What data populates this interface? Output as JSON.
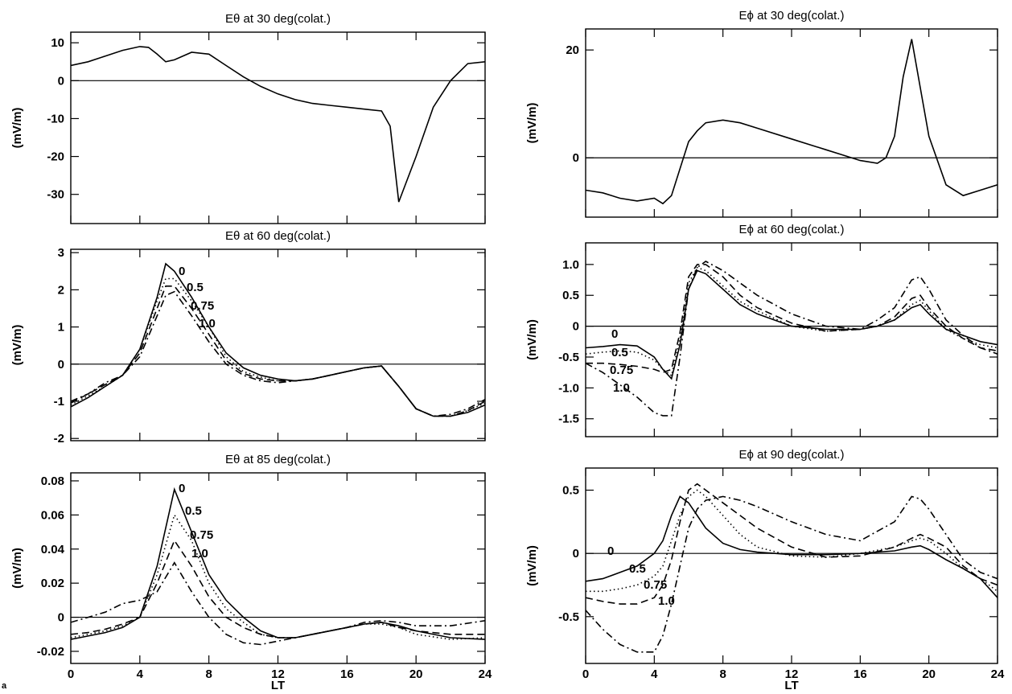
{
  "figure_label": "a",
  "chart_data": [
    {
      "type": "line",
      "title": "Eθ at 30 deg(colat.)",
      "ylabel": "(mV/m)",
      "x": [
        0,
        1,
        2,
        3,
        4,
        4.5,
        5,
        5.5,
        6,
        7,
        8,
        9,
        10,
        11,
        12,
        13,
        14,
        15,
        16,
        17,
        18,
        18.5,
        19,
        20,
        21,
        22,
        23,
        24
      ],
      "series": [
        {
          "name": null,
          "color": "#000000",
          "linestyle": "solid",
          "values": [
            4,
            5,
            6.5,
            8,
            9,
            8.8,
            7,
            5,
            5.5,
            7.5,
            7,
            4,
            1,
            -1.5,
            -3.5,
            -5,
            -6,
            -6.5,
            -7,
            -7.5,
            -8,
            -12,
            -32,
            -20,
            -7,
            0,
            4.5,
            5
          ]
        }
      ],
      "xlim": [
        0,
        24
      ],
      "xticks": [
        0,
        4,
        8,
        12,
        16,
        20,
        24
      ],
      "xtick_labels": false,
      "ylim": [
        -37.7,
        12.8
      ],
      "yticks": [
        10,
        0,
        -10,
        -20,
        -30
      ],
      "reference_line": 0
    },
    {
      "type": "line",
      "title": "Eθ at 60 deg(colat.)",
      "ylabel": "(mV/m)",
      "x": [
        0,
        1,
        2,
        3,
        4,
        5,
        5.5,
        6,
        7,
        8,
        9,
        10,
        11,
        12,
        13,
        14,
        15,
        16,
        17,
        18,
        19,
        20,
        21,
        22,
        23,
        24
      ],
      "series": [
        {
          "name": "0",
          "color": "#000000",
          "linestyle": "solid",
          "values": [
            -1.15,
            -0.9,
            -0.6,
            -0.3,
            0.4,
            1.8,
            2.7,
            2.5,
            1.8,
            1.0,
            0.3,
            -0.1,
            -0.3,
            -0.4,
            -0.45,
            -0.4,
            -0.3,
            -0.2,
            -0.1,
            -0.05,
            -0.6,
            -1.2,
            -1.4,
            -1.4,
            -1.3,
            -1.1
          ]
        },
        {
          "name": "0.5",
          "color": "#000000",
          "linestyle": "dotted",
          "values": [
            -1.1,
            -0.85,
            -0.6,
            -0.3,
            0.4,
            1.7,
            2.3,
            2.3,
            1.7,
            1.0,
            0.2,
            -0.2,
            -0.35,
            -0.45,
            -0.45,
            -0.4,
            -0.3,
            -0.2,
            -0.1,
            -0.05,
            -0.6,
            -1.2,
            -1.4,
            -1.4,
            -1.25,
            -1.05
          ]
        },
        {
          "name": "0.75",
          "color": "#000000",
          "linestyle": "dashed",
          "values": [
            -1.05,
            -0.8,
            -0.55,
            -0.3,
            0.3,
            1.5,
            2.1,
            2.1,
            1.5,
            0.8,
            0.1,
            -0.25,
            -0.4,
            -0.45,
            -0.45,
            -0.4,
            -0.3,
            -0.2,
            -0.1,
            -0.05,
            -0.6,
            -1.2,
            -1.4,
            -1.4,
            -1.25,
            -1.0
          ]
        },
        {
          "name": "1.0",
          "color": "#000000",
          "linestyle": "dashdot",
          "values": [
            -1.0,
            -0.8,
            -0.5,
            -0.3,
            0.2,
            1.3,
            1.85,
            1.95,
            1.3,
            0.6,
            0.0,
            -0.3,
            -0.45,
            -0.5,
            -0.45,
            -0.4,
            -0.3,
            -0.2,
            -0.1,
            -0.05,
            -0.6,
            -1.2,
            -1.4,
            -1.35,
            -1.2,
            -0.95
          ]
        }
      ],
      "xlim": [
        0,
        24
      ],
      "xticks": [
        0,
        4,
        8,
        12,
        16,
        20,
        24
      ],
      "xtick_labels": false,
      "ylim": [
        -2.06,
        3.09
      ],
      "yticks": [
        3,
        2,
        1,
        0,
        -1,
        -2
      ],
      "reference_line": 0
    },
    {
      "type": "line",
      "title": "Eθ at 85 deg(colat.)",
      "ylabel": "(mV/m)",
      "xlabel": "LT",
      "x": [
        0,
        1,
        2,
        3,
        4,
        5,
        6,
        7,
        8,
        9,
        10,
        11,
        12,
        13,
        14,
        16,
        17,
        18,
        19,
        20,
        22,
        24
      ],
      "series": [
        {
          "name": "0",
          "color": "#000000",
          "linestyle": "solid",
          "values": [
            -0.013,
            -0.011,
            -0.009,
            -0.006,
            0.0,
            0.03,
            0.075,
            0.05,
            0.025,
            0.01,
            0.0,
            -0.008,
            -0.012,
            -0.012,
            -0.01,
            -0.006,
            -0.004,
            -0.003,
            -0.005,
            -0.008,
            -0.012,
            -0.013
          ]
        },
        {
          "name": "0.5",
          "color": "#000000",
          "linestyle": "dotted",
          "values": [
            -0.012,
            -0.01,
            -0.008,
            -0.005,
            0.0,
            0.025,
            0.06,
            0.045,
            0.02,
            0.005,
            -0.003,
            -0.01,
            -0.012,
            -0.012,
            -0.01,
            -0.006,
            -0.004,
            -0.004,
            -0.006,
            -0.01,
            -0.013,
            -0.012
          ]
        },
        {
          "name": "0.75",
          "color": "#000000",
          "linestyle": "dashed",
          "values": [
            -0.01,
            -0.009,
            -0.007,
            -0.004,
            0.0,
            0.02,
            0.045,
            0.03,
            0.012,
            0.0,
            -0.006,
            -0.01,
            -0.012,
            -0.012,
            -0.01,
            -0.006,
            -0.004,
            -0.003,
            -0.006,
            -0.008,
            -0.01,
            -0.01
          ]
        },
        {
          "name": "1.0",
          "color": "#000000",
          "linestyle": "dashdot",
          "values": [
            -0.003,
            0.0,
            0.003,
            0.008,
            0.01,
            0.015,
            0.032,
            0.015,
            0.0,
            -0.01,
            -0.015,
            -0.016,
            -0.014,
            -0.012,
            -0.01,
            -0.006,
            -0.003,
            -0.002,
            -0.003,
            -0.005,
            -0.005,
            -0.002
          ]
        }
      ],
      "xlim": [
        0,
        24
      ],
      "xticks": [
        0,
        4,
        8,
        12,
        16,
        20,
        24
      ],
      "xtick_labels": true,
      "ylim": [
        -0.0271,
        0.0847
      ],
      "yticks": [
        0.08,
        0.06,
        0.04,
        0.02,
        0,
        -0.02
      ],
      "reference_line": 0
    },
    {
      "type": "line",
      "title": "Eϕ at 30 deg(colat.)",
      "ylabel": "(mV/m)",
      "x": [
        0,
        1,
        2,
        3,
        4,
        4.5,
        5,
        5.5,
        6,
        6.5,
        7,
        8,
        9,
        10,
        12,
        14,
        15,
        16,
        17,
        17.5,
        18,
        18.5,
        19,
        19.5,
        20,
        21,
        22,
        23,
        24
      ],
      "series": [
        {
          "name": null,
          "color": "#000000",
          "linestyle": "solid",
          "values": [
            -6,
            -6.5,
            -7.5,
            -8,
            -7.5,
            -8.5,
            -7,
            -2,
            3,
            5,
            6.5,
            7,
            6.5,
            5.5,
            3.5,
            1.5,
            0.5,
            -0.5,
            -1,
            0,
            4,
            15,
            22,
            13,
            4,
            -5,
            -7,
            -6,
            -5
          ]
        }
      ],
      "xlim": [
        0,
        24
      ],
      "xticks": [
        0,
        4,
        8,
        12,
        16,
        20,
        24
      ],
      "xtick_labels": false,
      "ylim": [
        -11.0,
        23.9
      ],
      "yticks": [
        20,
        0
      ],
      "reference_line": 0
    },
    {
      "type": "line",
      "title": "Eϕ at 60 deg(colat.)",
      "ylabel": "(mV/m)",
      "x": [
        0,
        1,
        2,
        3,
        4,
        4.5,
        5,
        5.5,
        6,
        6.5,
        7,
        8,
        9,
        10,
        12,
        14,
        16,
        17,
        18,
        19,
        19.5,
        20,
        21,
        22,
        23,
        24
      ],
      "series": [
        {
          "name": "0",
          "color": "#000000",
          "linestyle": "solid",
          "values": [
            -0.35,
            -0.33,
            -0.3,
            -0.32,
            -0.5,
            -0.7,
            -0.85,
            -0.3,
            0.6,
            0.9,
            0.85,
            0.6,
            0.35,
            0.2,
            0.0,
            -0.05,
            -0.05,
            0.0,
            0.1,
            0.3,
            0.35,
            0.2,
            -0.05,
            -0.15,
            -0.25,
            -0.3
          ]
        },
        {
          "name": "0.5",
          "color": "#000000",
          "linestyle": "dotted",
          "values": [
            -0.45,
            -0.42,
            -0.4,
            -0.42,
            -0.55,
            -0.7,
            -0.8,
            -0.2,
            0.7,
            0.95,
            0.9,
            0.65,
            0.4,
            0.25,
            0.0,
            -0.08,
            -0.05,
            0.0,
            0.1,
            0.35,
            0.42,
            0.25,
            -0.05,
            -0.2,
            -0.3,
            -0.35
          ]
        },
        {
          "name": "0.75",
          "color": "#000000",
          "linestyle": "dashed",
          "values": [
            -0.6,
            -0.6,
            -0.62,
            -0.65,
            -0.7,
            -0.75,
            -0.7,
            -0.1,
            0.8,
            1.0,
            1.0,
            0.8,
            0.5,
            0.3,
            0.05,
            -0.08,
            -0.05,
            0.0,
            0.15,
            0.45,
            0.5,
            0.3,
            0.0,
            -0.2,
            -0.35,
            -0.4
          ]
        },
        {
          "name": "1.0",
          "color": "#000000",
          "linestyle": "dashdot",
          "values": [
            -0.6,
            -0.75,
            -0.95,
            -1.15,
            -1.4,
            -1.45,
            -1.45,
            -0.5,
            0.6,
            0.95,
            1.05,
            0.9,
            0.7,
            0.5,
            0.2,
            0.0,
            -0.05,
            0.1,
            0.3,
            0.75,
            0.8,
            0.6,
            0.1,
            -0.15,
            -0.35,
            -0.45
          ]
        }
      ],
      "xlim": [
        0,
        24
      ],
      "xticks": [
        0,
        4,
        8,
        12,
        16,
        20,
        24
      ],
      "xtick_labels": false,
      "ylim": [
        -1.79,
        1.35
      ],
      "yticks": [
        {
          "value": 1,
          "label": "1.0"
        },
        0.5,
        0,
        -0.5,
        {
          "value": -1,
          "label": "-1.0"
        },
        -1.5
      ],
      "reference_line": 0
    },
    {
      "type": "line",
      "title": "Eϕ at 90 deg(colat.)",
      "ylabel": "(mV/m)",
      "xlabel": "LT",
      "x": [
        0,
        1,
        2,
        3,
        4,
        4.5,
        5,
        5.5,
        6,
        6.5,
        7,
        8,
        9,
        10,
        12,
        14,
        16,
        18,
        19,
        19.5,
        20,
        21,
        22,
        23,
        24
      ],
      "series": [
        {
          "name": "0",
          "color": "#000000",
          "linestyle": "solid",
          "values": [
            -0.22,
            -0.2,
            -0.15,
            -0.1,
            0.0,
            0.1,
            0.3,
            0.45,
            0.4,
            0.3,
            0.2,
            0.08,
            0.03,
            0.01,
            -0.01,
            -0.01,
            0.0,
            0.02,
            0.05,
            0.06,
            0.03,
            -0.05,
            -0.12,
            -0.2,
            -0.35
          ]
        },
        {
          "name": "0.5",
          "color": "#000000",
          "linestyle": "dotted",
          "values": [
            -0.3,
            -0.3,
            -0.28,
            -0.25,
            -0.18,
            -0.1,
            0.1,
            0.3,
            0.45,
            0.5,
            0.45,
            0.3,
            0.15,
            0.05,
            -0.02,
            -0.03,
            0.0,
            0.05,
            0.1,
            0.12,
            0.1,
            0.0,
            -0.12,
            -0.2,
            -0.3
          ]
        },
        {
          "name": "0.75",
          "color": "#000000",
          "linestyle": "dashed",
          "values": [
            -0.35,
            -0.38,
            -0.4,
            -0.4,
            -0.35,
            -0.25,
            -0.05,
            0.25,
            0.5,
            0.55,
            0.5,
            0.4,
            0.3,
            0.2,
            0.05,
            -0.03,
            -0.02,
            0.05,
            0.12,
            0.15,
            0.12,
            0.05,
            -0.1,
            -0.2,
            -0.25
          ]
        },
        {
          "name": "1.0",
          "color": "#000000",
          "linestyle": "dashdot",
          "values": [
            -0.45,
            -0.6,
            -0.72,
            -0.78,
            -0.78,
            -0.65,
            -0.4,
            -0.1,
            0.2,
            0.35,
            0.42,
            0.45,
            0.42,
            0.37,
            0.25,
            0.15,
            0.1,
            0.25,
            0.45,
            0.43,
            0.35,
            0.15,
            -0.05,
            -0.15,
            -0.2
          ]
        }
      ],
      "xlim": [
        0,
        24
      ],
      "xticks": [
        0,
        4,
        8,
        12,
        16,
        20,
        24
      ],
      "xtick_labels": true,
      "ylim": [
        -0.87,
        0.675
      ],
      "yticks": [
        0.5,
        0,
        -0.5
      ],
      "reference_line": 0
    }
  ]
}
